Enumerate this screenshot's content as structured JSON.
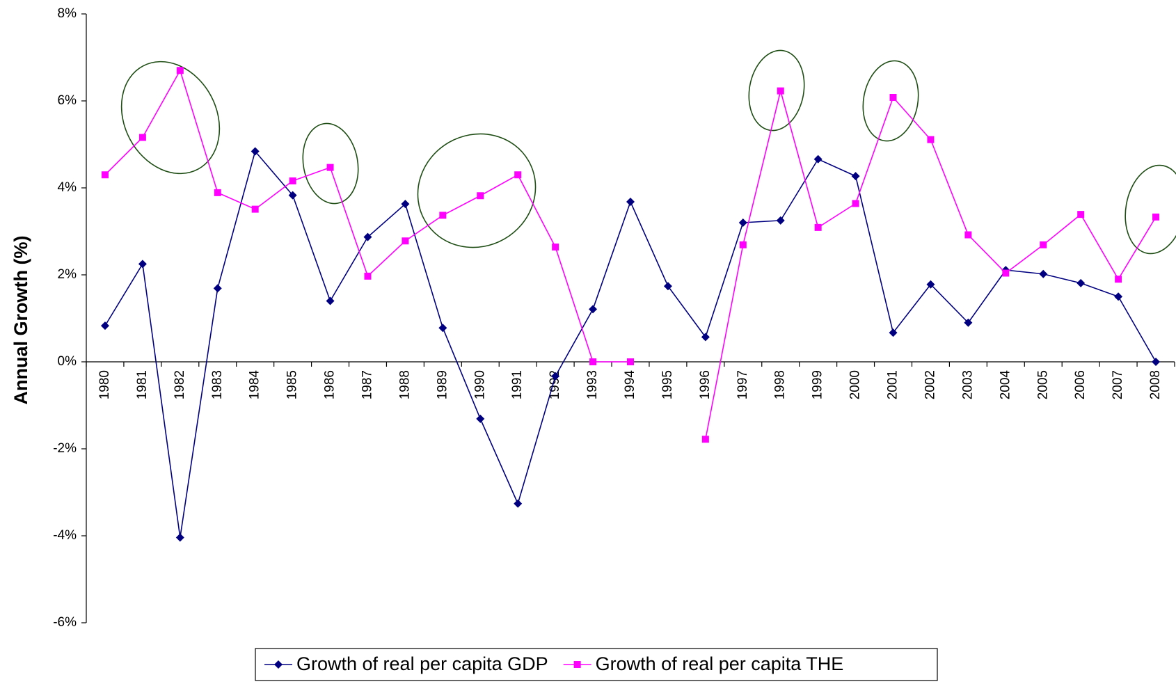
{
  "chart_data": {
    "type": "line",
    "y_label": "Annual Growth (%)",
    "categories": [
      "1980",
      "1981",
      "1982",
      "1983",
      "1984",
      "1985",
      "1986",
      "1987",
      "1988",
      "1989",
      "1990",
      "1991",
      "1992",
      "1993",
      "1994",
      "1995",
      "1996",
      "1997",
      "1998",
      "1999",
      "2000",
      "2001",
      "2002",
      "2003",
      "2004",
      "2005",
      "2006",
      "2007",
      "2008"
    ],
    "series": [
      {
        "name": "Growth of real per capita GDP",
        "color": "#000080",
        "marker": "diamond",
        "values": [
          0.83,
          2.25,
          -4.04,
          1.69,
          4.84,
          3.83,
          1.4,
          2.87,
          3.63,
          0.78,
          -1.31,
          -3.26,
          -0.33,
          1.21,
          3.68,
          1.74,
          0.57,
          3.2,
          3.25,
          4.66,
          4.27,
          0.67,
          1.78,
          0.9,
          2.11,
          2.02,
          1.81,
          1.5,
          0
        ]
      },
      {
        "name": "Growth of real per capita THE",
        "color": "#ff00ff",
        "marker": "square",
        "values": [
          4.3,
          5.16,
          6.7,
          3.89,
          3.51,
          4.16,
          4.47,
          1.97,
          2.78,
          3.37,
          3.82,
          4.3,
          2.64,
          0,
          0,
          null,
          -1.78,
          2.69,
          6.23,
          3.09,
          3.64,
          6.08,
          5.11,
          2.92,
          2.04,
          2.69,
          3.39,
          1.9,
          3.33
        ]
      }
    ],
    "ylim": [
      -6,
      8
    ],
    "yticks": [
      {
        "value": -6,
        "label": "-6%"
      },
      {
        "value": -4,
        "label": "-4%"
      },
      {
        "value": -2,
        "label": "-2%"
      },
      {
        "value": 0,
        "label": "0%"
      },
      {
        "value": 2,
        "label": "2%"
      },
      {
        "value": 4,
        "label": "4%"
      },
      {
        "value": 6,
        "label": "6%"
      },
      {
        "value": 8,
        "label": "8%"
      }
    ],
    "grid": false,
    "legend": "bottom"
  }
}
